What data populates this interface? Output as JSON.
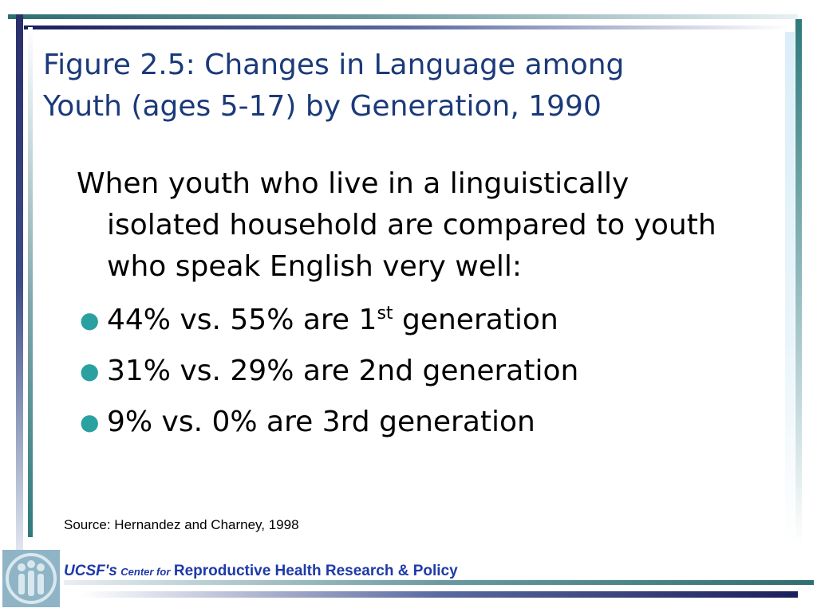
{
  "slide": {
    "title_line1": "Figure 2.5: Changes in Language among",
    "title_line2": "Youth (ages 5-17) by Generation, 1990",
    "intro": "When youth who live in a linguistically isolated household are compared to youth who speak English very well:",
    "bullets": [
      {
        "prefix": "44% vs. 55% are 1",
        "sup": "st",
        "suffix": " generation"
      },
      {
        "text": "31% vs. 29% are 2nd generation"
      },
      {
        "text": "9% vs. 0% are 3rd generation"
      }
    ],
    "source": "Source: Hernandez and Charney, 1998"
  },
  "footer": {
    "ucsf": "UCSF's",
    "center_for": "Center for",
    "org": "Reproductive Health Research & Policy"
  },
  "colors": {
    "title": "#1b3a7a",
    "bullet": "#2aa0a0",
    "footer": "#1e3aa8"
  },
  "icons": {
    "logo": "ucsf-people-logo-icon",
    "bullet": "bullet-dot"
  }
}
